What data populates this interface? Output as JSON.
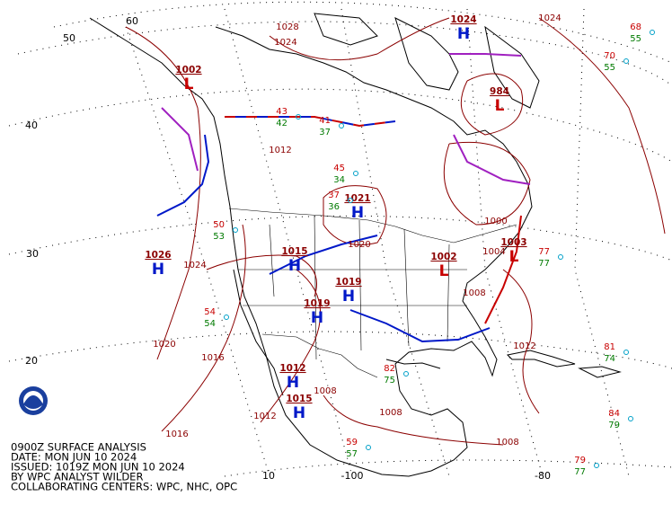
{
  "caption": {
    "lines": [
      "0900Z SURFACE ANALYSIS",
      "DATE: MON JUN 10 2024",
      "ISSUED: 1019Z MON JUN 10 2024",
      "BY WPC ANALYST WILDER",
      "COLLABORATING CENTERS: WPC, NHC, OPC"
    ]
  },
  "latitude_labels": [
    "60",
    "50",
    "40",
    "30",
    "20",
    "10"
  ],
  "longitude_labels": [
    "-100",
    "-80"
  ],
  "pressure_centers": [
    {
      "kind": "H",
      "pressure": "1026"
    },
    {
      "kind": "H",
      "pressure": "1021"
    },
    {
      "kind": "H",
      "pressure": "1024"
    },
    {
      "kind": "L",
      "pressure": "1002"
    },
    {
      "kind": "L",
      "pressure": "984"
    },
    {
      "kind": "H",
      "pressure": "1019"
    },
    {
      "kind": "H",
      "pressure": "1019"
    },
    {
      "kind": "H",
      "pressure": "1015"
    },
    {
      "kind": "L",
      "pressure": "1003"
    },
    {
      "kind": "L",
      "pressure": "1002"
    },
    {
      "kind": "H",
      "pressure": "1015"
    },
    {
      "kind": "H",
      "pressure": "1012"
    }
  ],
  "isobar_labels": [
    "1024",
    "1028",
    "1024",
    "1024",
    "1020",
    "1016",
    "1016",
    "1012",
    "1008",
    "1008",
    "1008",
    "1012",
    "1000",
    "1004",
    "1008",
    "1012",
    "1020"
  ],
  "station_plots": [
    {
      "temperature": "70",
      "dewpoint": "55"
    },
    {
      "temperature": "68",
      "dewpoint": "55"
    },
    {
      "temperature": "77",
      "dewpoint": "77"
    },
    {
      "temperature": "81",
      "dewpoint": "74"
    },
    {
      "temperature": "84",
      "dewpoint": "79"
    },
    {
      "temperature": "79",
      "dewpoint": "77"
    },
    {
      "temperature": "82",
      "dewpoint": "75"
    },
    {
      "temperature": "59",
      "dewpoint": "57"
    },
    {
      "temperature": "45",
      "dewpoint": "34"
    },
    {
      "temperature": "37",
      "dewpoint": "36"
    },
    {
      "temperature": "50",
      "dewpoint": "53"
    },
    {
      "temperature": "54",
      "dewpoint": "54"
    },
    {
      "temperature": "43",
      "dewpoint": "42"
    },
    {
      "temperature": "41",
      "dewpoint": "37"
    }
  ]
}
